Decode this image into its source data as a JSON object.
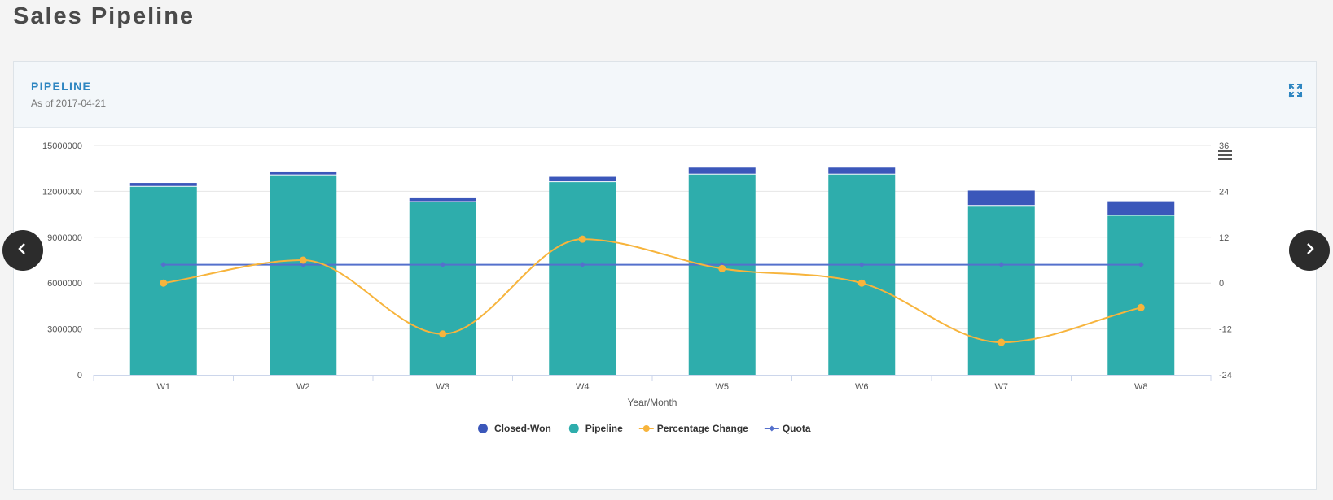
{
  "page": {
    "title": "Sales Pipeline"
  },
  "panel": {
    "title": "PIPELINE",
    "subtitle": "As of 2017-04-21"
  },
  "icons": {
    "expand": "expand-icon",
    "menu": "hamburger-menu-icon",
    "prev": "chevron-left-icon",
    "next": "chevron-right-icon"
  },
  "chart_data": {
    "type": "bar",
    "stacked": true,
    "categories": [
      "W1",
      "W2",
      "W3",
      "W4",
      "W5",
      "W6",
      "W7",
      "W8"
    ],
    "xlabel": "Year/Month",
    "ylim_left": [
      0,
      15000000
    ],
    "yticks_left": [
      0,
      3000000,
      6000000,
      9000000,
      12000000,
      15000000
    ],
    "ylim_right": [
      -24,
      36
    ],
    "yticks_right": [
      -24,
      -12,
      0,
      12,
      24,
      36
    ],
    "grid": true,
    "legend_position": "bottom-center",
    "series": [
      {
        "name": "Closed-Won",
        "type": "bar",
        "axis": "left",
        "color": "#3b57ba",
        "values": [
          250000,
          250000,
          300000,
          350000,
          450000,
          450000,
          1000000,
          950000
        ]
      },
      {
        "name": "Pipeline",
        "type": "bar",
        "axis": "left",
        "color": "#2eadac",
        "values": [
          12300000,
          13050000,
          11300000,
          12600000,
          13100000,
          13100000,
          11050000,
          10400000
        ]
      },
      {
        "name": "Percentage Change",
        "type": "spline",
        "axis": "right",
        "color": "#f7b43c",
        "values": [
          0,
          6,
          -13.3,
          11.5,
          3.8,
          0,
          -15.5,
          -6.4
        ]
      },
      {
        "name": "Quota",
        "type": "line",
        "axis": "left",
        "color": "#5470cc",
        "values": [
          7200000,
          7200000,
          7200000,
          7200000,
          7200000,
          7200000,
          7200000,
          7200000
        ]
      }
    ]
  }
}
